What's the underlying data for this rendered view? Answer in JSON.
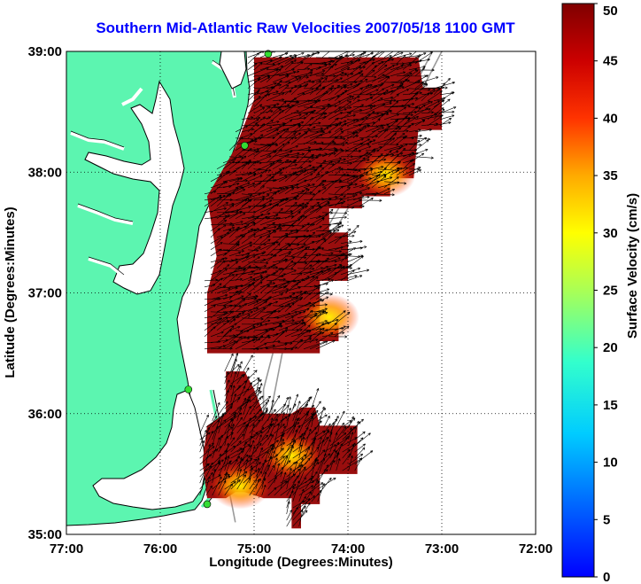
{
  "title": "Southern Mid-Atlantic Raw Velocities 2007/05/18 1100 GMT",
  "map": {
    "xlabel": "Longitude (Degrees:Minutes)",
    "ylabel": "Latitude (Degrees:Minutes)",
    "x_ticks": [
      {
        "lon": -77,
        "label": "77:00"
      },
      {
        "lon": -76,
        "label": "76:00"
      },
      {
        "lon": -75,
        "label": "75:00"
      },
      {
        "lon": -74,
        "label": "74:00"
      },
      {
        "lon": -73,
        "label": "73:00"
      },
      {
        "lon": -72,
        "label": "72:00"
      }
    ],
    "y_ticks": [
      {
        "lat": 35,
        "label": "35:00"
      },
      {
        "lat": 36,
        "label": "36:00"
      },
      {
        "lat": 37,
        "label": "37:00"
      },
      {
        "lat": 38,
        "label": "38:00"
      },
      {
        "lat": 39,
        "label": "39:00"
      }
    ],
    "lon_range": [
      -77,
      -72
    ],
    "lat_range": [
      35,
      39
    ],
    "grid": "dotted",
    "land_color": "#5cf5b0",
    "coastline_color": "#000000",
    "isobath_color": "#9a9a9a",
    "station_color": "#33dd33"
  },
  "colorbar": {
    "label": "Surface Velocity (cm/s)",
    "ticks": [
      "0",
      "5",
      "10",
      "15",
      "20",
      "25",
      "30",
      "35",
      "40",
      "45",
      "50"
    ],
    "range": [
      0,
      50
    ],
    "colormap": "jet"
  },
  "chart_data": {
    "type": "heatmap",
    "title": "Southern Mid-Atlantic Raw Velocities 2007/05/18 1100 GMT",
    "xlabel": "Longitude (Degrees:Minutes)",
    "ylabel": "Latitude (Degrees:Minutes)",
    "xlim": [
      -77,
      -72
    ],
    "ylim": [
      35,
      39
    ],
    "colorbar_label": "Surface Velocity (cm/s)",
    "clim": [
      0,
      50
    ],
    "stations": [
      {
        "lon": -74.85,
        "lat": 38.98
      },
      {
        "lon": -75.1,
        "lat": 38.22
      },
      {
        "lon": -75.7,
        "lat": 36.2
      },
      {
        "lon": -75.5,
        "lat": 35.25
      }
    ],
    "velocity_regions": [
      {
        "name": "north",
        "speed_range_cm_s": [
          35,
          50
        ],
        "polygon": [
          [
            -75.0,
            38.95
          ],
          [
            -74.2,
            38.95
          ],
          [
            -73.25,
            38.95
          ],
          [
            -73.2,
            38.7
          ],
          [
            -73.0,
            38.7
          ],
          [
            -73.0,
            38.35
          ],
          [
            -73.25,
            38.35
          ],
          [
            -73.3,
            37.95
          ],
          [
            -73.55,
            37.95
          ],
          [
            -73.55,
            37.8
          ],
          [
            -73.85,
            37.8
          ],
          [
            -73.85,
            37.7
          ],
          [
            -74.2,
            37.7
          ],
          [
            -74.2,
            37.5
          ],
          [
            -74.0,
            37.5
          ],
          [
            -74.0,
            37.1
          ],
          [
            -74.3,
            37.1
          ],
          [
            -74.3,
            36.75
          ],
          [
            -74.1,
            36.75
          ],
          [
            -74.1,
            36.6
          ],
          [
            -74.3,
            36.6
          ],
          [
            -74.3,
            36.5
          ],
          [
            -75.5,
            36.5
          ],
          [
            -75.5,
            37.0
          ],
          [
            -75.4,
            37.3
          ],
          [
            -75.5,
            37.8
          ],
          [
            -75.2,
            38.2
          ],
          [
            -75.0,
            38.6
          ]
        ],
        "hotspots": [
          {
            "lon": -73.6,
            "lat": 37.98,
            "speed": 20
          },
          {
            "lon": -74.2,
            "lat": 36.8,
            "speed": 25
          }
        ]
      },
      {
        "name": "south",
        "speed_range_cm_s": [
          30,
          50
        ],
        "polygon": [
          [
            -75.3,
            36.35
          ],
          [
            -75.1,
            36.35
          ],
          [
            -75.0,
            36.2
          ],
          [
            -74.9,
            36.0
          ],
          [
            -74.6,
            36.0
          ],
          [
            -74.5,
            36.05
          ],
          [
            -74.35,
            36.05
          ],
          [
            -74.3,
            35.9
          ],
          [
            -73.9,
            35.9
          ],
          [
            -73.9,
            35.5
          ],
          [
            -74.3,
            35.5
          ],
          [
            -74.3,
            35.25
          ],
          [
            -74.5,
            35.25
          ],
          [
            -74.5,
            35.05
          ],
          [
            -74.6,
            35.05
          ],
          [
            -74.6,
            35.3
          ],
          [
            -74.9,
            35.3
          ],
          [
            -75.1,
            35.35
          ],
          [
            -75.2,
            35.35
          ],
          [
            -75.3,
            35.3
          ],
          [
            -75.5,
            35.3
          ],
          [
            -75.55,
            35.6
          ],
          [
            -75.5,
            35.9
          ],
          [
            -75.3,
            36.0
          ]
        ],
        "hotspots": [
          {
            "lon": -74.6,
            "lat": 35.65,
            "speed": 25
          },
          {
            "lon": -75.15,
            "lat": 35.4,
            "speed": 28
          }
        ]
      }
    ]
  }
}
